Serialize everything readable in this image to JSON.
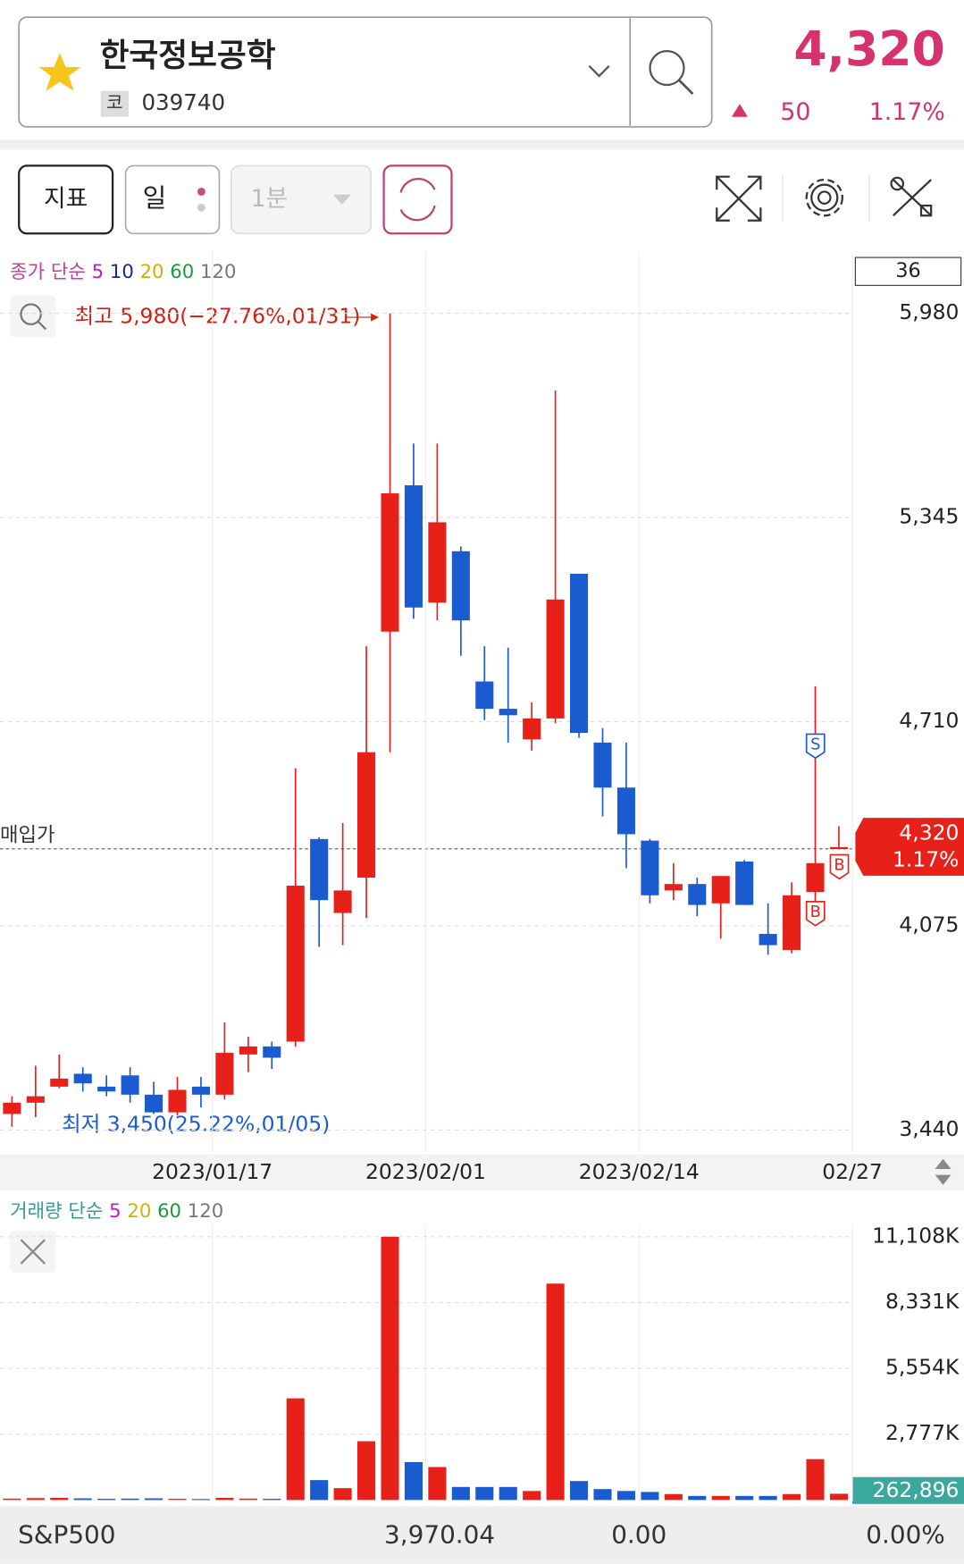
{
  "header": {
    "name": "한국정보공학",
    "code_badge": "코",
    "code": "039740",
    "price": "4,320",
    "change": "50",
    "change_pct": "1.17%"
  },
  "toolbar": {
    "indicator": "지표",
    "period": "일",
    "interval": "1분"
  },
  "chart_data": [
    {
      "type": "candlestick",
      "legend": {
        "label": "종가 단순",
        "periods": [
          "5",
          "10",
          "20",
          "60",
          "120"
        ]
      },
      "count_label": "36",
      "open": [
        3490,
        3525,
        3575,
        3615,
        3575,
        3610,
        3550,
        3495,
        3575,
        3550,
        3675,
        3700,
        3715,
        4345,
        4115,
        4225,
        4990,
        5445,
        5080,
        5240,
        4835,
        4750,
        4655,
        4720,
        5170,
        4645,
        4505,
        4340,
        4185,
        4205,
        4145,
        4275,
        4050,
        4000,
        4180,
        4320
      ],
      "high": [
        3545,
        3640,
        3675,
        3635,
        3610,
        3635,
        3590,
        3605,
        3605,
        3775,
        3730,
        3715,
        4565,
        4350,
        4395,
        4945,
        5980,
        5575,
        5575,
        5255,
        4945,
        4940,
        4770,
        5740,
        5170,
        4690,
        4645,
        4345,
        4270,
        4225,
        4230,
        4280,
        4145,
        4210,
        4820,
        4385
      ],
      "low": [
        3450,
        3480,
        3570,
        3560,
        3545,
        3525,
        3490,
        3485,
        3510,
        3535,
        3620,
        3630,
        3700,
        4010,
        4015,
        4100,
        4615,
        5030,
        5025,
        4915,
        4715,
        4645,
        4620,
        4705,
        4660,
        4415,
        4255,
        4145,
        4155,
        4105,
        4035,
        4140,
        3985,
        3990,
        4130,
        4320
      ],
      "close": [
        3525,
        3545,
        3600,
        3585,
        3560,
        3550,
        3495,
        3565,
        3550,
        3680,
        3700,
        3665,
        4200,
        4155,
        4185,
        4615,
        5420,
        5065,
        5330,
        5025,
        4750,
        4730,
        4720,
        5090,
        4675,
        4505,
        4360,
        4170,
        4205,
        4140,
        4230,
        4140,
        4015,
        4170,
        4270,
        4320
      ],
      "colors": {
        "up": "#e8201a",
        "down": "#1a5bd0"
      },
      "ylim": [
        3440,
        5980
      ],
      "yticks": [
        {
          "value": 3440,
          "label": "3,440"
        },
        {
          "value": 4075,
          "label": "4,075"
        },
        {
          "value": 4710,
          "label": "4,710"
        },
        {
          "value": 5345,
          "label": "5,345"
        },
        {
          "value": 5980,
          "label": "5,980"
        }
      ],
      "grid": true,
      "xlabels": [
        "2023/01/17",
        "2023/02/01",
        "2023/02/14",
        "02/27"
      ],
      "annotations": {
        "high": "최고 5,980(−27.76%,01/31)",
        "low": "최저 3,450(25.22%,01/05)",
        "purchase": "매입가",
        "current": "4,320",
        "current_pct": "1.17%"
      },
      "signals": [
        "S",
        "B",
        "B"
      ]
    },
    {
      "type": "bar",
      "legend": {
        "label": "거래량 단순",
        "periods": [
          "5",
          "20",
          "60",
          "120"
        ]
      },
      "values": [
        60000,
        80000,
        90000,
        70000,
        50000,
        60000,
        70000,
        50000,
        40000,
        90000,
        60000,
        50000,
        4290000,
        840000,
        500000,
        2480000,
        11108000,
        1600000,
        1390000,
        550000,
        550000,
        550000,
        380000,
        9130000,
        800000,
        460000,
        380000,
        340000,
        250000,
        170000,
        170000,
        170000,
        170000,
        250000,
        1725000,
        262896
      ],
      "ylim": [
        0,
        11108000
      ],
      "yticks": [
        {
          "value": 2777000,
          "label": "2,777K"
        },
        {
          "value": 5554000,
          "label": "5,554K"
        },
        {
          "value": 8331000,
          "label": "8,331K"
        },
        {
          "value": 11108000,
          "label": "11,108K"
        }
      ],
      "grid": true,
      "current_label": "262,896",
      "current_color": "#3aa89e"
    }
  ],
  "footer": {
    "index": "S&P500",
    "value": "3,970.04",
    "change": "0.00",
    "change_pct": "0.00%"
  }
}
